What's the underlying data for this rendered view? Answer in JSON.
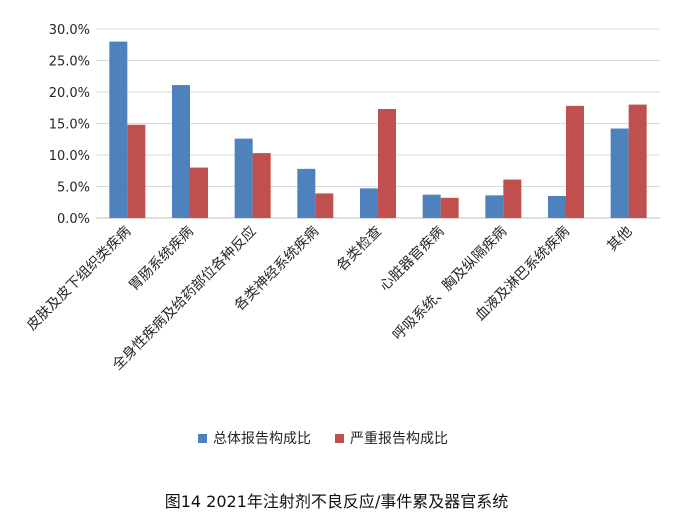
{
  "chart_data": {
    "type": "bar",
    "categories": [
      "皮肤及皮下组织类疾病",
      "胃肠系统疾病",
      "全身性疾病及给药部位各种反应",
      "各类神经系统疾病",
      "各类检查",
      "心脏器官疾病",
      "呼吸系统、胸及纵隔疾病",
      "血液及淋巴系统疾病",
      "其他"
    ],
    "series": [
      {
        "name": "总体报告构成比",
        "color": "#4F81BD",
        "values": [
          28.0,
          21.1,
          12.6,
          7.8,
          4.7,
          3.7,
          3.6,
          3.5,
          14.2
        ]
      },
      {
        "name": "严重报告构成比",
        "color": "#C0504D",
        "values": [
          14.8,
          8.0,
          10.3,
          3.9,
          17.3,
          3.2,
          6.1,
          17.8,
          18.0
        ]
      }
    ],
    "ylim": [
      0,
      30
    ],
    "yticks": [
      0,
      5,
      10,
      15,
      20,
      25,
      30
    ],
    "ytick_labels": [
      "0.0%",
      "5.0%",
      "10.0%",
      "15.0%",
      "20.0%",
      "25.0%",
      "30.0%"
    ],
    "grid": true,
    "legend_position": "bottom",
    "caption": "图14  2021年注射剂不良反应/事件累及器官系统"
  }
}
